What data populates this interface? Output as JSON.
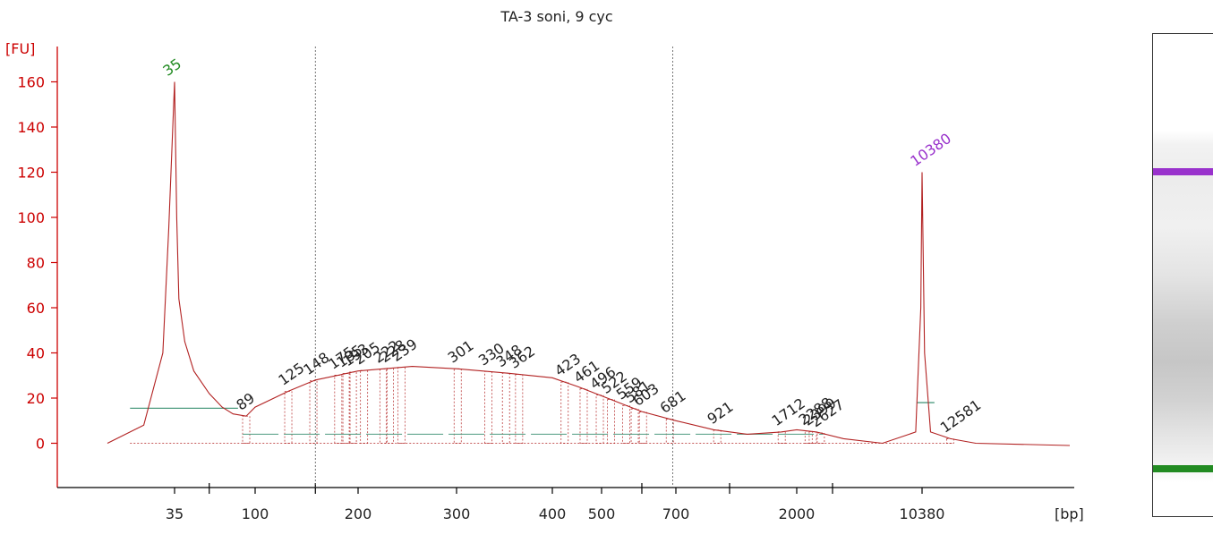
{
  "colors": {
    "axis": "#cc0000",
    "trace": "#b22222",
    "marker_lower": "#228b22",
    "marker_upper": "#9932cc",
    "baseline": "#4f9c80",
    "text": "#222222"
  },
  "chart_data": {
    "type": "line",
    "title": "TA-3 soni, 9 cyc",
    "ylabel": "[FU]",
    "xlabel": "[bp]",
    "ylim": [
      -18,
      175
    ],
    "yticks": [
      0,
      20,
      40,
      60,
      80,
      100,
      120,
      140,
      160
    ],
    "xticks": [
      "35",
      "100",
      "200",
      "300",
      "400",
      "500",
      "700",
      "2000",
      "10380"
    ],
    "x_scale": "sizing ladder (non-linear)",
    "series": [
      {
        "x": [
          25,
          30,
          33,
          34,
          35,
          36,
          37,
          40,
          45,
          55,
          65,
          75,
          89,
          100,
          125,
          150,
          200,
          250,
          300,
          350,
          400,
          450,
          500,
          600,
          700,
          900,
          1200,
          1700,
          2000,
          2500,
          3500,
          6000,
          9500,
          10200,
          10380,
          10560,
          11000,
          12600,
          15000,
          25000
        ],
        "y": [
          0,
          8,
          40,
          95,
          160,
          100,
          64,
          45,
          32,
          22,
          16,
          13,
          12,
          16,
          23,
          28,
          32,
          34,
          33,
          31,
          29,
          25,
          21,
          14,
          10,
          6,
          4,
          5,
          6,
          5,
          2,
          0,
          5,
          60,
          120,
          40,
          5,
          2,
          0,
          -1
        ]
      }
    ],
    "marker_peaks": [
      {
        "label": "35",
        "color": "#228b22"
      },
      {
        "label": "10380",
        "color": "#9932cc"
      }
    ],
    "peak_labels": [
      "89",
      "125",
      "148",
      "175",
      "185",
      "193",
      "205",
      "222",
      "228",
      "239",
      "301",
      "330",
      "348",
      "362",
      "423",
      "461",
      "496",
      "522",
      "559",
      "581",
      "603",
      "681",
      "921",
      "1712",
      "2288",
      "2399",
      "2627",
      "12581"
    ]
  },
  "gel": {
    "bands": [
      {
        "name": "upper-marker",
        "color": "#9932cc"
      },
      {
        "name": "lower-marker",
        "color": "#228b22"
      }
    ]
  }
}
